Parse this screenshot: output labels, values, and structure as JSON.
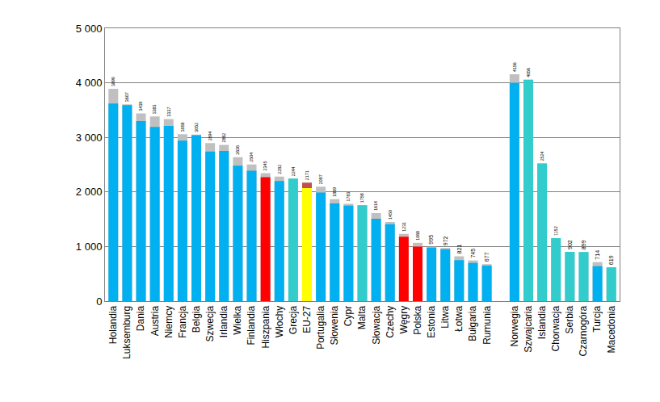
{
  "chart_data": {
    "type": "bar",
    "categories": [
      "Holandia",
      "Luksemburg",
      "Dania",
      "Austria",
      "Niemcy",
      "Francja",
      "Belgia",
      "Szwecja",
      "Irlandia",
      "Wielka",
      "Finlandia",
      "Hiszpania",
      "Włochy",
      "Grecja",
      "EU-27",
      "Portugalia",
      "Słowenia",
      "Cypr",
      "Malta",
      "Słowacja",
      "Czechy",
      "Węgry",
      "Polska",
      "Estonia",
      "Litwa",
      "Łotwa",
      "Bułgaria",
      "Rumunia",
      null,
      "Norwegia",
      "Szwajcaria",
      "Islandia",
      "Chorwacja",
      "Serbia",
      "Czarnogóra",
      "Turcja",
      "Macedonia"
    ],
    "stacked": false,
    "series": [
      {
        "data_labels": true,
        "colors": [
          "#c0c0c0",
          "#c0c0c0",
          "#c0c0c0",
          "#c0c0c0",
          "#c0c0c0",
          "#c0c0c0",
          "#c0c0c0",
          "#c0c0c0",
          "#c0c0c0",
          "#c0c0c0",
          "#c0c0c0",
          "#c0c0c0",
          "#c0c0c0",
          "#c0c0c0",
          "#c0504d",
          "#c0c0c0",
          "#c0c0c0",
          "#c0c0c0",
          "#c0c0c0",
          "#c0c0c0",
          "#c0c0c0",
          "#c0c0c0",
          "#c0c0c0",
          "#c0c0c0",
          "#c0c0c0",
          "#c0c0c0",
          "#c0c0c0",
          "#c0c0c0",
          "#c0c0c0",
          "#c0c0c0",
          "#c0c0c0",
          "#c0c0c0",
          "#c0c0c0",
          "#c0c0c0",
          "#c0c0c0",
          "#c0c0c0",
          "#c0c0c0"
        ],
        "values": [
          3890,
          3607,
          3439,
          3383,
          3337,
          3058,
          3052,
          2894,
          2862,
          2636,
          2504,
          2345,
          2282,
          2244,
          2171,
          2097,
          1869,
          1783,
          1758,
          1614,
          1450,
          1231,
          1068,
          995,
          972,
          821,
          745,
          677,
          null,
          4156,
          4056,
          2524,
          1152,
          902,
          899,
          714,
          619
        ]
      },
      {
        "colors": [
          "#00b0f0",
          "#00b0f0",
          "#00b0f0",
          "#00b0f0",
          "#00b0f0",
          "#00b0f0",
          "#00b0f0",
          "#00b0f0",
          "#00b0f0",
          "#00b0f0",
          "#00b0f0",
          "#ff0000",
          "#00b0f0",
          "#33cccc",
          "#ffff00",
          "#00b0f0",
          "#00b0f0",
          "#00b0f0",
          "#33cccc",
          "#00b0f0",
          "#00b0f0",
          "#ff0000",
          "#ff0000",
          "#00b0f0",
          "#00b0f0",
          "#00b0f0",
          "#00b0f0",
          "#00b0f0",
          "#00b0f0",
          "#00b0f0",
          "#33cccc",
          "#33cccc",
          "#33cccc",
          "#33cccc",
          "#33cccc",
          "#00b0f0",
          "#33cccc"
        ],
        "values": [
          3620,
          3590,
          3300,
          3190,
          3210,
          2940,
          3040,
          2740,
          2750,
          2480,
          2390,
          2270,
          2200,
          2244,
          2070,
          1990,
          1790,
          1750,
          1758,
          1510,
          1410,
          1180,
          1000,
          980,
          950,
          750,
          700,
          650,
          null,
          4000,
          4056,
          2524,
          1152,
          902,
          899,
          640,
          619
        ]
      }
    ],
    "ylim": [
      0,
      5000
    ],
    "yticks": [
      0,
      {
        "value": 1000,
        "label": "1 000"
      },
      {
        "value": 2000,
        "label": "2 000"
      },
      {
        "value": 3000,
        "label": "3 000"
      },
      {
        "value": 4000,
        "label": "4 000"
      },
      {
        "value": 5000,
        "label": "5 000"
      }
    ],
    "grid": true
  }
}
